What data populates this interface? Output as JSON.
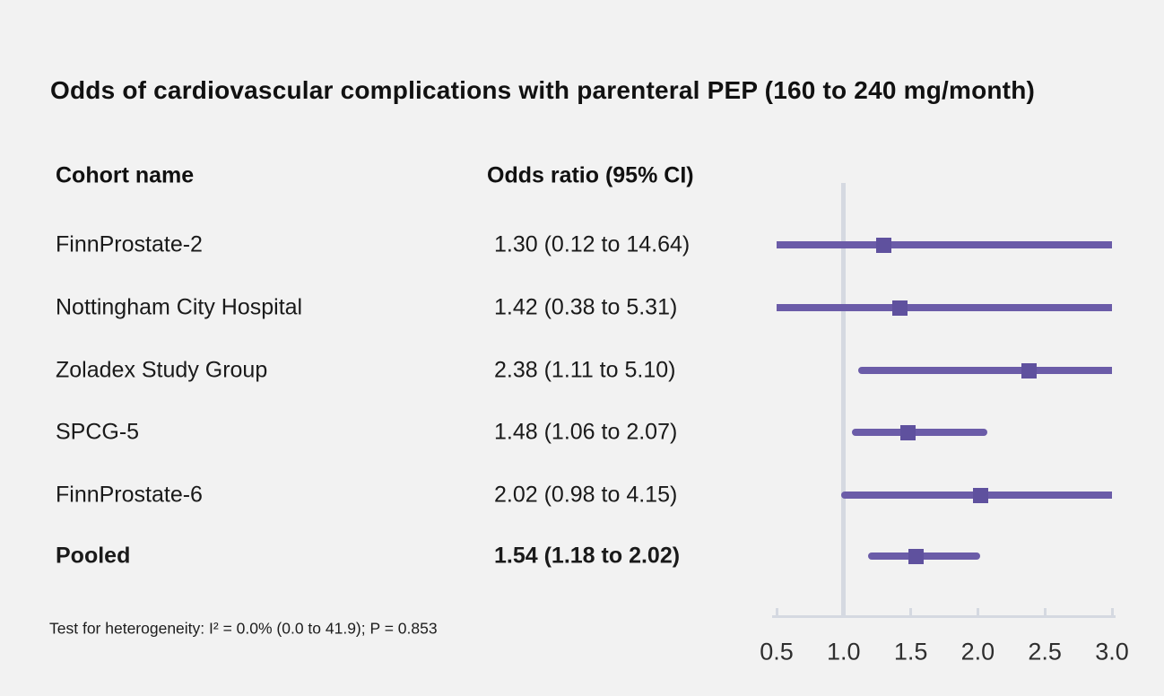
{
  "title": "Odds of cardiovascular complications with parenteral PEP (160 to 240 mg/month)",
  "columns": {
    "cohort": "Cohort name",
    "odds_ratio": "Odds ratio (95% CI)"
  },
  "footnote": "Test for heterogeneity: I² = 0.0% (0.0 to 41.9); P = 0.853",
  "colors": {
    "background": "#f2f2f2",
    "ci_line": "#6b5ca8",
    "marker": "#5f519e",
    "axis_line": "#d5d9e1",
    "reference_line": "#d5d9e1"
  },
  "chart_data": {
    "type": "forest",
    "title": "Odds of cardiovascular complications with parenteral PEP (160 to 240 mg/month)",
    "x_range": [
      0.5,
      3.0
    ],
    "reference_line": 1.0,
    "x_ticks": [
      {
        "value": 0.5,
        "label": "0.5"
      },
      {
        "value": 1.0,
        "label": "1.0"
      },
      {
        "value": 1.5,
        "label": "1.5"
      },
      {
        "value": 2.0,
        "label": "2.0"
      },
      {
        "value": 2.5,
        "label": "2.5"
      },
      {
        "value": 3.0,
        "label": "3.0"
      }
    ],
    "rows": [
      {
        "cohort": "FinnProstate-2",
        "or": 1.3,
        "ci_low": 0.12,
        "ci_high": 14.64,
        "display": "1.30 (0.12 to 14.64)",
        "bold": false
      },
      {
        "cohort": "Nottingham City Hospital",
        "or": 1.42,
        "ci_low": 0.38,
        "ci_high": 5.31,
        "display": "1.42 (0.38 to 5.31)",
        "bold": false
      },
      {
        "cohort": "Zoladex Study Group",
        "or": 2.38,
        "ci_low": 1.11,
        "ci_high": 5.1,
        "display": "2.38 (1.11 to 5.10)",
        "bold": false
      },
      {
        "cohort": "SPCG-5",
        "or": 1.48,
        "ci_low": 1.06,
        "ci_high": 2.07,
        "display": "1.48 (1.06 to 2.07)",
        "bold": false
      },
      {
        "cohort": "FinnProstate-6",
        "or": 2.02,
        "ci_low": 0.98,
        "ci_high": 4.15,
        "display": "2.02 (0.98 to 4.15)",
        "bold": false
      },
      {
        "cohort": "Pooled",
        "or": 1.54,
        "ci_low": 1.18,
        "ci_high": 2.02,
        "display": "1.54 (1.18 to 2.02)",
        "bold": true
      }
    ]
  }
}
